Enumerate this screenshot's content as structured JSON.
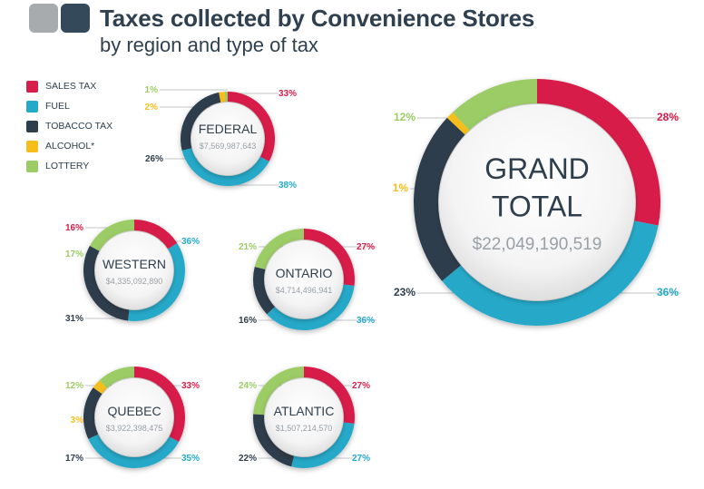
{
  "header": {
    "title": "Taxes collected by Convenience Stores",
    "subtitle": "by region and type of tax"
  },
  "legend": [
    {
      "label": "SALES TAX",
      "color": "#d81e4a"
    },
    {
      "label": "FUEL",
      "color": "#25a9c9"
    },
    {
      "label": "TOBACCO TAX",
      "color": "#2f3e4c"
    },
    {
      "label": "ALCOHOL*",
      "color": "#f6be1b"
    },
    {
      "label": "LOTTERY",
      "color": "#9ccc65"
    }
  ],
  "chart_data": [
    {
      "type": "pie",
      "title": "FEDERAL",
      "total": "$7,569,987,643",
      "series": [
        "SALES TAX",
        "FUEL",
        "TOBACCO TAX",
        "ALCOHOL*",
        "LOTTERY"
      ],
      "values": [
        33,
        38,
        26,
        2,
        1
      ],
      "labels": [
        "33%",
        "38%",
        "26%",
        "2%",
        "1%"
      ]
    },
    {
      "type": "pie",
      "title": "WESTERN",
      "total": "$4,335,092,890",
      "series": [
        "SALES TAX",
        "FUEL",
        "TOBACCO TAX",
        "LOTTERY"
      ],
      "values": [
        16,
        36,
        31,
        17
      ],
      "labels": [
        "16%",
        "36%",
        "31%",
        "17%"
      ]
    },
    {
      "type": "pie",
      "title": "ONTARIO",
      "total": "$4,714,496,941",
      "series": [
        "SALES TAX",
        "FUEL",
        "TOBACCO TAX",
        "LOTTERY"
      ],
      "values": [
        27,
        36,
        16,
        21
      ],
      "labels": [
        "27%",
        "36%",
        "16%",
        "21%"
      ]
    },
    {
      "type": "pie",
      "title": "QUEBEC",
      "total": "$3,922,398,475",
      "series": [
        "SALES TAX",
        "FUEL",
        "TOBACCO TAX",
        "ALCOHOL*",
        "LOTTERY"
      ],
      "values": [
        33,
        35,
        17,
        3,
        12
      ],
      "labels": [
        "33%",
        "35%",
        "17%",
        "3%",
        "12%"
      ]
    },
    {
      "type": "pie",
      "title": "ATLANTIC",
      "total": "$1,507,214,570",
      "series": [
        "SALES TAX",
        "FUEL",
        "TOBACCO TAX",
        "LOTTERY"
      ],
      "values": [
        27,
        27,
        22,
        24
      ],
      "labels": [
        "27%",
        "27%",
        "22%",
        "24%"
      ]
    },
    {
      "type": "pie",
      "title": "GRAND TOTAL",
      "title_lines": [
        "GRAND",
        "TOTAL"
      ],
      "total": "$22,049,190,519",
      "series": [
        "SALES TAX",
        "FUEL",
        "TOBACCO TAX",
        "ALCOHOL*",
        "LOTTERY"
      ],
      "values": [
        28,
        36,
        23,
        1,
        12
      ],
      "labels": [
        "28%",
        "36%",
        "23%",
        "1%",
        "12%"
      ]
    }
  ]
}
